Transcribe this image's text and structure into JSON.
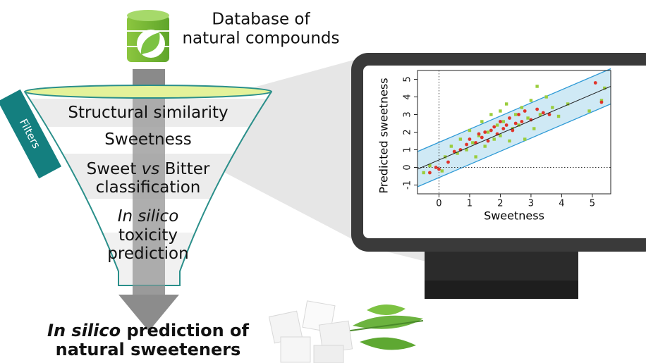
{
  "database": {
    "label": [
      "Database of",
      "natural compounds"
    ]
  },
  "funnel": {
    "tab": "Filters",
    "steps": [
      [
        [
          {
            "text": "Structural similarity"
          }
        ]
      ],
      [
        [
          {
            "text": "Sweetness"
          }
        ]
      ],
      [
        [
          {
            "text": "Sweet "
          },
          {
            "text": "vs",
            "italic": true
          },
          {
            "text": " Bitter"
          }
        ],
        [
          {
            "text": "classification"
          }
        ]
      ],
      [
        [
          {
            "text": "In silico",
            "italic": true
          }
        ],
        [
          {
            "text": "toxicity"
          }
        ],
        [
          {
            "text": "prediction"
          }
        ]
      ]
    ]
  },
  "result": {
    "lines": [
      [
        {
          "text": "In silico",
          "italic": true
        },
        {
          "text": " prediction of"
        }
      ],
      [
        {
          "text": "natural sweeteners"
        }
      ]
    ]
  },
  "chart_data": {
    "type": "scatter",
    "xlabel": "Sweetness",
    "ylabel": "Predicted sweetness",
    "xlim": [
      -0.7,
      5.6
    ],
    "ylim": [
      -1.5,
      5.5
    ],
    "xticks": [
      0,
      1,
      2,
      3,
      4,
      5
    ],
    "yticks": [
      -1,
      0,
      1,
      2,
      3,
      4,
      5
    ],
    "reference_lines": {
      "x": 0,
      "y": 0
    },
    "fit_line": {
      "x": [
        -0.7,
        5.6
      ],
      "y": [
        -0.1,
        4.6
      ],
      "upper": [
        0.9,
        5.6
      ],
      "lower": [
        -1.1,
        3.6
      ],
      "color": "#222",
      "band_color": "#2e9ad6",
      "band_fill": "#cfe9f5"
    },
    "series": [
      {
        "color": "#9acd3c",
        "marker": "square",
        "x": [
          -0.5,
          -0.3,
          0.1,
          0.2,
          0.4,
          0.6,
          0.7,
          0.9,
          1.0,
          1.1,
          1.2,
          1.3,
          1.4,
          1.5,
          1.6,
          1.7,
          1.8,
          1.9,
          2.0,
          2.0,
          2.1,
          2.2,
          2.3,
          2.4,
          2.5,
          2.6,
          2.7,
          2.8,
          2.9,
          3.0,
          3.1,
          3.2,
          3.3,
          3.5,
          3.7,
          3.9,
          4.2,
          4.9,
          5.3,
          5.4
        ],
        "values": [
          -0.3,
          0.1,
          -0.2,
          0.6,
          1.2,
          0.8,
          1.6,
          1.0,
          2.1,
          1.4,
          0.6,
          1.8,
          2.6,
          1.2,
          2.0,
          3.0,
          1.6,
          2.4,
          3.2,
          1.8,
          2.6,
          3.6,
          1.5,
          2.2,
          3.0,
          2.4,
          3.4,
          1.6,
          2.8,
          3.8,
          2.2,
          4.6,
          3.0,
          4.0,
          3.4,
          2.9,
          3.6,
          3.2,
          3.8,
          4.5
        ]
      },
      {
        "color": "#e0342a",
        "marker": "circle",
        "x": [
          -0.3,
          -0.1,
          0.0,
          0.3,
          0.5,
          0.7,
          0.9,
          1.0,
          1.2,
          1.3,
          1.4,
          1.5,
          1.6,
          1.7,
          1.8,
          1.9,
          2.0,
          2.1,
          2.2,
          2.3,
          2.4,
          2.5,
          2.6,
          2.7,
          2.8,
          3.0,
          3.2,
          3.4,
          3.6,
          5.1,
          5.3
        ],
        "values": [
          -0.3,
          0.0,
          -0.1,
          0.3,
          0.9,
          1.0,
          1.3,
          1.6,
          1.4,
          1.9,
          1.7,
          2.0,
          1.5,
          2.1,
          2.3,
          1.9,
          2.6,
          2.2,
          2.4,
          2.8,
          2.1,
          2.5,
          3.0,
          2.6,
          3.2,
          2.7,
          3.3,
          3.1,
          3.0,
          4.8,
          3.7
        ]
      }
    ]
  }
}
